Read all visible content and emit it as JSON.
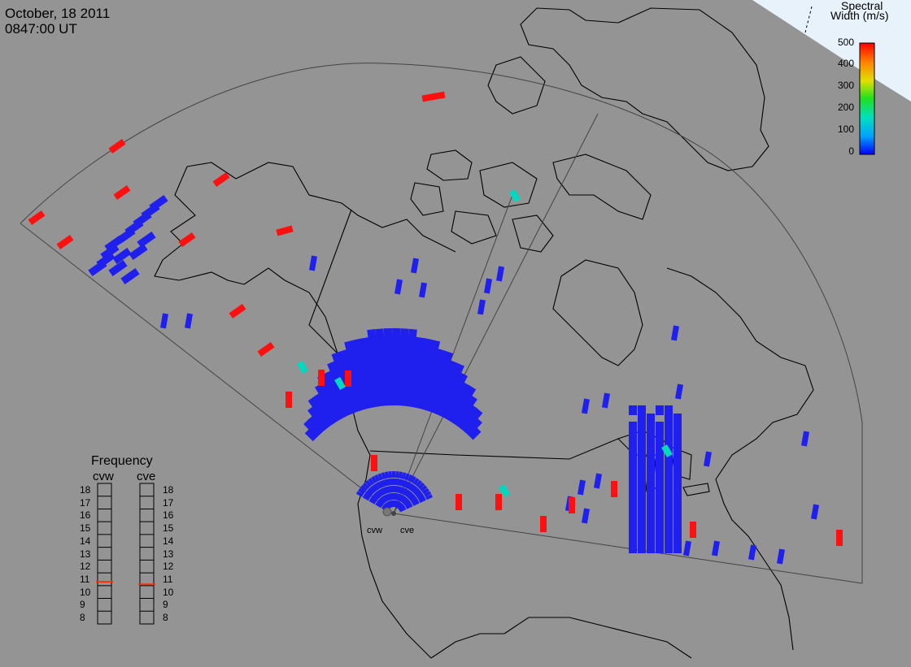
{
  "header": {
    "date": "October, 18 2011",
    "time": "0847:00 UT"
  },
  "colorbar": {
    "title_line1": "Spectral",
    "title_line2": "Width (m/s)",
    "ticks": [
      "500",
      "400",
      "300",
      "200",
      "100",
      "0"
    ],
    "range": [
      0,
      500
    ],
    "colors": [
      "#0000ff",
      "#00a0ff",
      "#00e0c0",
      "#20e020",
      "#e0e000",
      "#ff8000",
      "#ff0000"
    ]
  },
  "frequency_panel": {
    "title": "Frequency",
    "radars": [
      {
        "name": "cvw",
        "value": 10.8
      },
      {
        "name": "cve",
        "value": 10.6
      }
    ],
    "scale": [
      "18",
      "17",
      "16",
      "15",
      "14",
      "13",
      "12",
      "11",
      "10",
      "9",
      "8"
    ],
    "marker_color": "#ff3000"
  },
  "radars": [
    {
      "name": "cvw"
    },
    {
      "name": "cve"
    }
  ],
  "map": {
    "background": "#949494",
    "land_outline": "#000000",
    "fov_outline": "#444444",
    "corner_fill": "#e8f2fa",
    "data_colors": {
      "low": "#1f1fee",
      "mid": "#00d8c0",
      "high": "#ff1010"
    }
  }
}
